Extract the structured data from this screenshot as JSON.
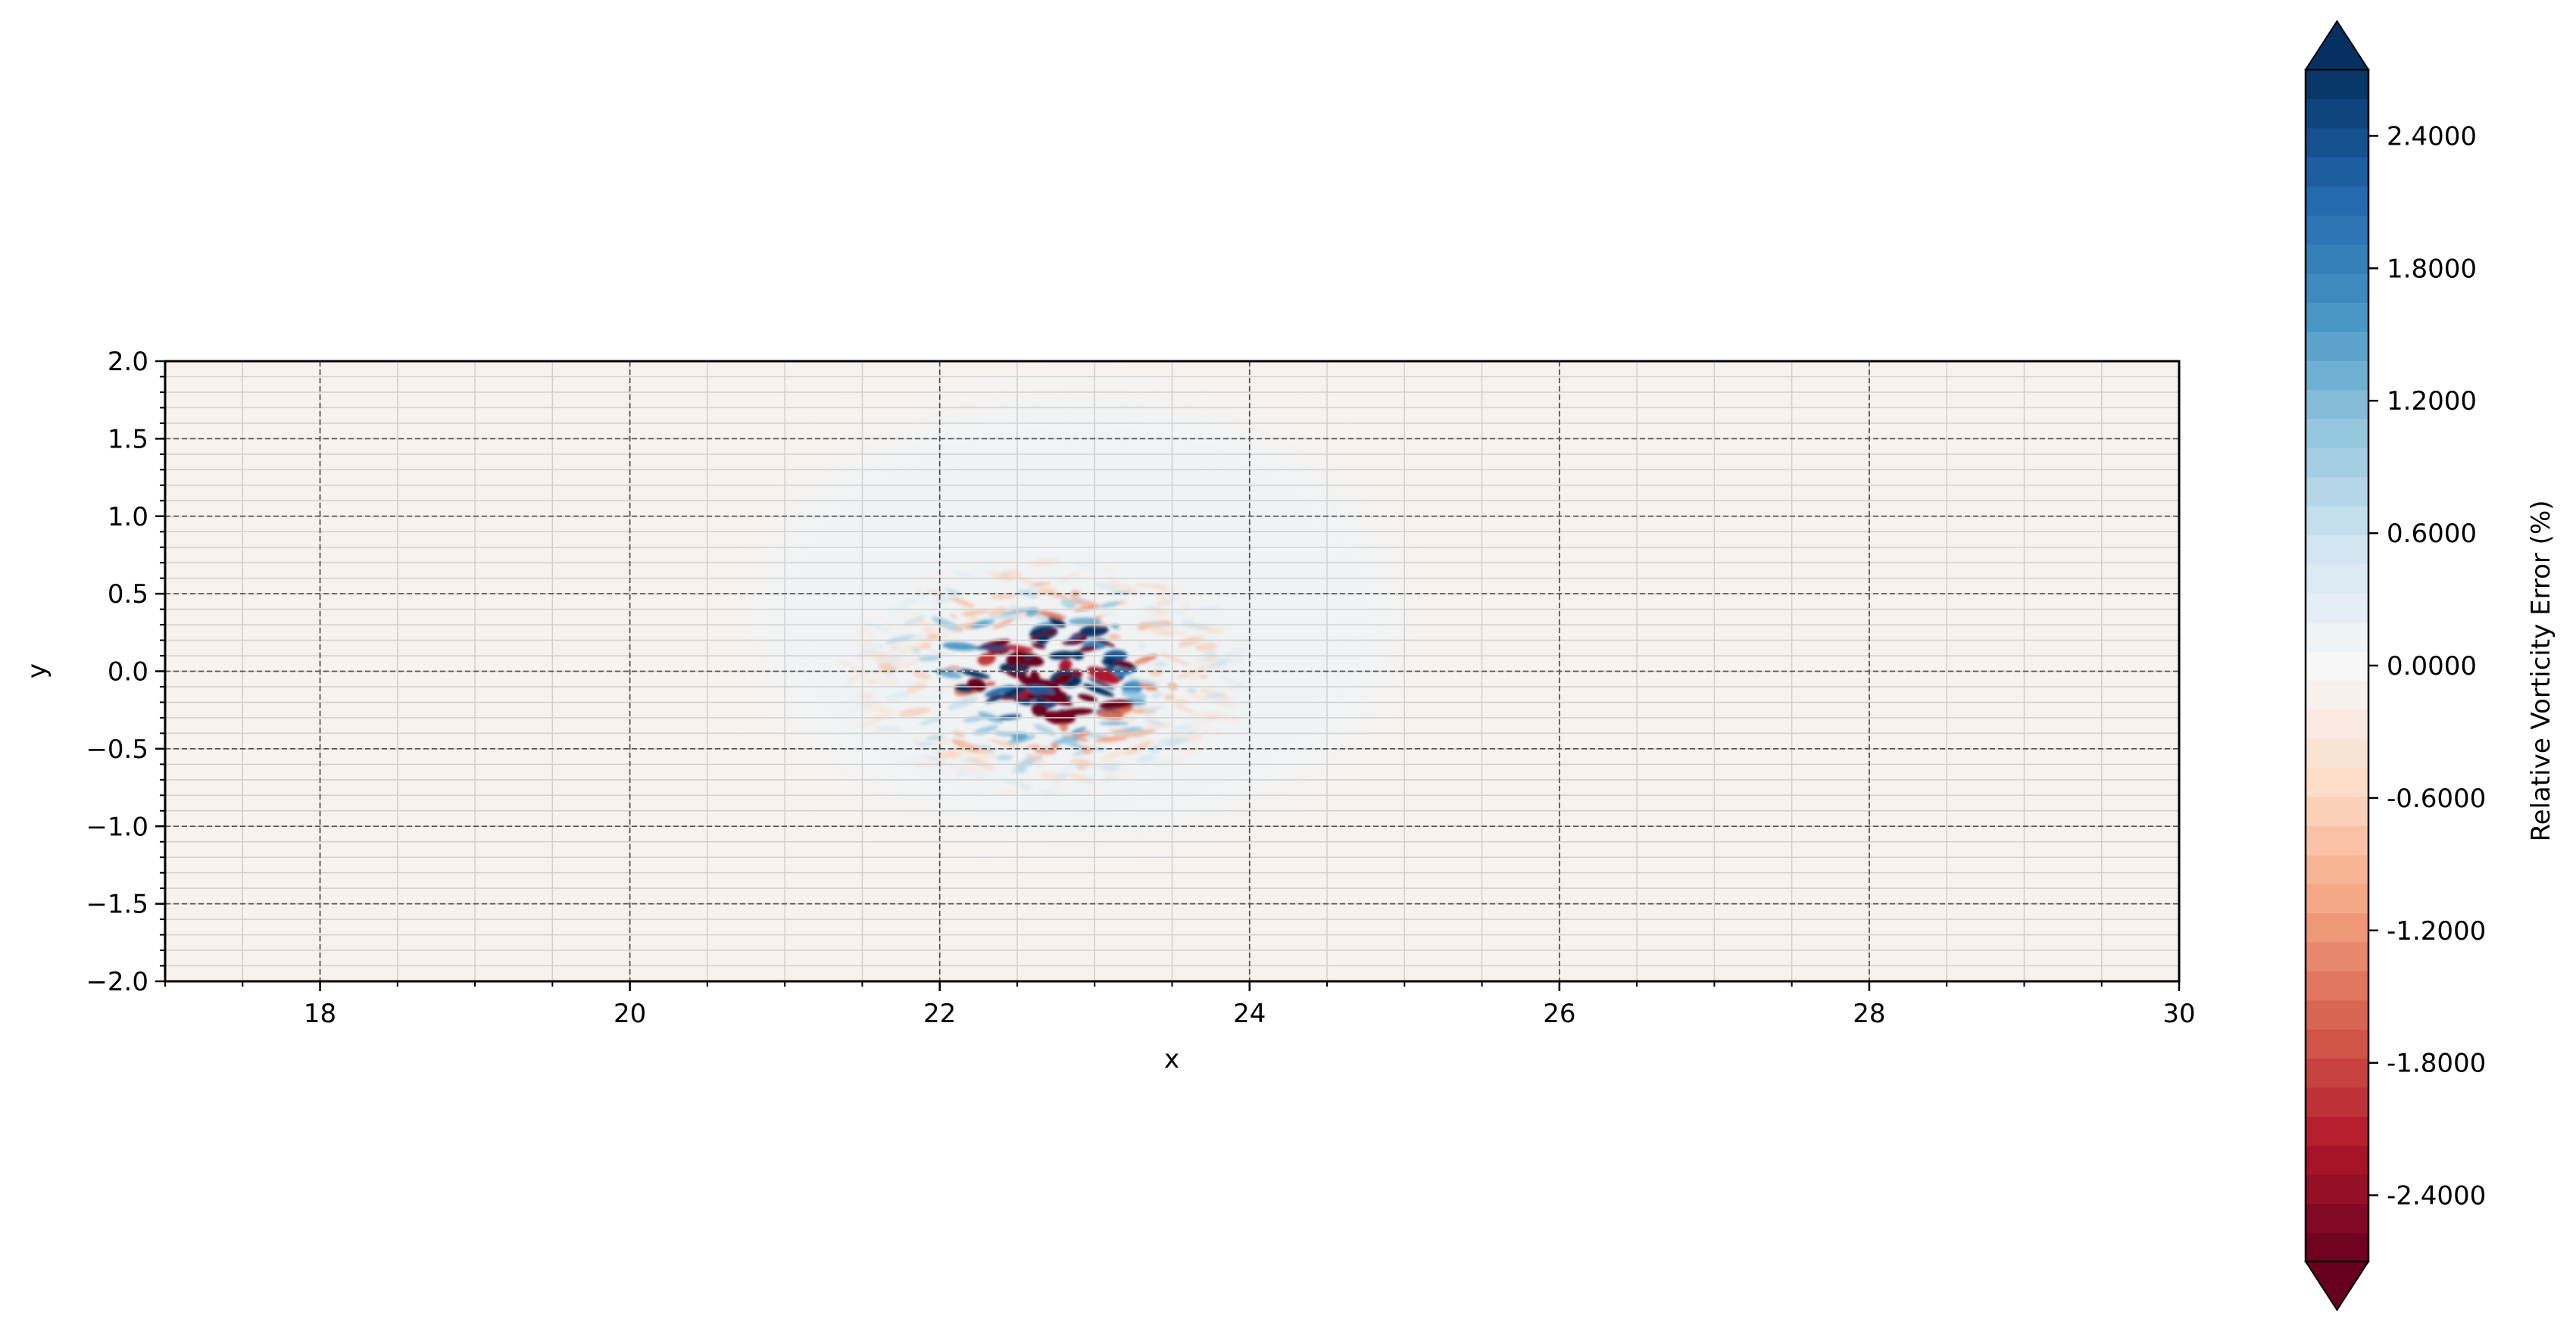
{
  "chart_data": {
    "type": "heatmap",
    "title": "",
    "xlabel": "x",
    "ylabel": "y",
    "xlim": [
      17,
      30
    ],
    "ylim": [
      -2.0,
      2.0
    ],
    "x_ticks": [
      18,
      20,
      22,
      24,
      26,
      28,
      30
    ],
    "x_tick_labels": [
      "18",
      "20",
      "22",
      "24",
      "26",
      "28",
      "30"
    ],
    "y_ticks": [
      2.0,
      1.5,
      1.0,
      0.5,
      0.0,
      -0.5,
      -1.0,
      -1.5,
      -2.0
    ],
    "y_tick_labels": [
      "2.0",
      "1.5",
      "1.0",
      "0.5",
      "0.0",
      "−0.5",
      "−1.0",
      "−1.5",
      "−2.0"
    ],
    "grid": true,
    "colorbar": {
      "label": "Relative Vorticity Error (%)",
      "range": [
        -2.7,
        2.7
      ],
      "ticks": [
        2.4,
        1.8,
        1.2,
        0.6,
        0.0,
        -0.6,
        -1.2,
        -1.8,
        -2.4
      ],
      "tick_labels": [
        "2.4000",
        "1.8000",
        "1.2000",
        "0.6000",
        "0.0000",
        "-0.6000",
        "-1.2000",
        "-1.8000",
        "-2.4000"
      ],
      "extend": "both",
      "colormap": "RdBu",
      "levels": 41
    },
    "field": {
      "background_value": -0.1,
      "disturbance_center": [
        22.8,
        0.0
      ],
      "disturbance_extent_x": [
        21.4,
        24.0
      ],
      "disturbance_extent_y": [
        -0.8,
        0.75
      ],
      "halo_extent_x": [
        20.8,
        25.0
      ],
      "halo_extent_y": [
        -1.1,
        1.8
      ],
      "halo_value": 0.12
    },
    "colors": {
      "colormap_stops": [
        "#67001f",
        "#b2182b",
        "#d6604d",
        "#f4a582",
        "#fddbc7",
        "#f7f7f7",
        "#d1e5f0",
        "#92c5de",
        "#4393c3",
        "#2166ac",
        "#053061"
      ],
      "grid_major": "#555555",
      "grid_minor": "#d0d0d0"
    }
  }
}
